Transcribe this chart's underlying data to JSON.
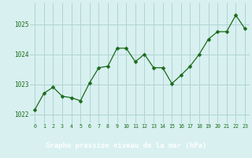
{
  "x": [
    0,
    1,
    2,
    3,
    4,
    5,
    6,
    7,
    8,
    9,
    10,
    11,
    12,
    13,
    14,
    15,
    16,
    17,
    18,
    19,
    20,
    21,
    22,
    23
  ],
  "y": [
    1022.15,
    1022.7,
    1022.9,
    1022.6,
    1022.55,
    1022.45,
    1023.05,
    1023.55,
    1023.6,
    1024.2,
    1024.2,
    1023.75,
    1024.0,
    1023.55,
    1023.55,
    1023.02,
    1023.3,
    1023.6,
    1024.0,
    1024.5,
    1024.75,
    1024.75,
    1025.3,
    1024.85
  ],
  "line_color": "#1a6b1a",
  "marker": "D",
  "marker_size": 2.5,
  "bg_color": "#d8f0f0",
  "grid_color": "#b0d4d4",
  "tick_color": "#1a6b1a",
  "xlabel": "Graphe pression niveau de la mer (hPa)",
  "xlabel_color": "#ffffff",
  "xlabel_bg": "#2d7a2d",
  "ylim": [
    1021.7,
    1025.7
  ],
  "yticks": [
    1022,
    1023,
    1024,
    1025
  ],
  "xtick_labels": [
    "0",
    "1",
    "2",
    "3",
    "4",
    "5",
    "6",
    "7",
    "8",
    "9",
    "10",
    "11",
    "12",
    "13",
    "14",
    "15",
    "16",
    "17",
    "18",
    "19",
    "20",
    "21",
    "22",
    "23"
  ]
}
